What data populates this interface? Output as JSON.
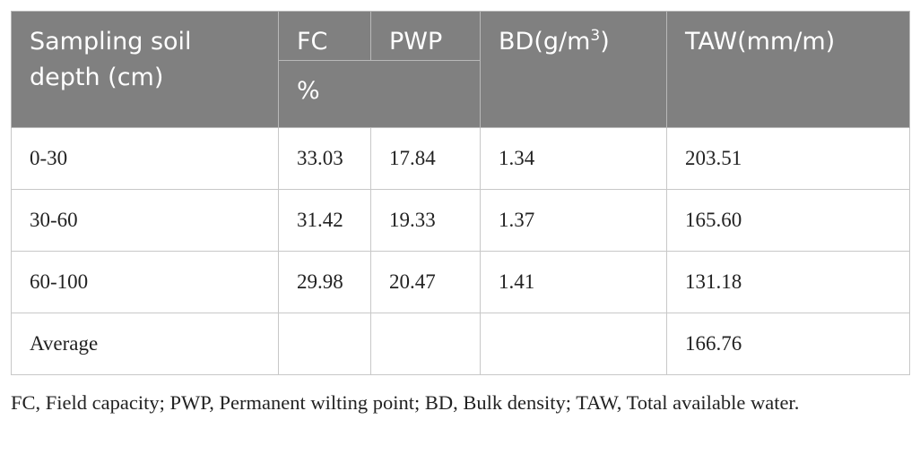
{
  "table": {
    "header": {
      "depth": "Sampling soil depth (cm)",
      "fc": "FC",
      "pwp": "PWP",
      "bd": {
        "text": "BD(g/m",
        "sup": "3",
        "close": ")"
      },
      "taw": "TAW(mm/m)",
      "unit": "%"
    },
    "rows": [
      [
        "0-30",
        "33.03",
        "17.84",
        "1.34",
        "203.51"
      ],
      [
        "30-60",
        "31.42",
        "19.33",
        "1.37",
        "165.60"
      ],
      [
        "60-100",
        "29.98",
        "20.47",
        "1.41",
        "131.18"
      ],
      [
        "Average",
        null,
        null,
        null,
        "166.76"
      ]
    ]
  },
  "footnote": "FC, Field capacity; PWP, Permanent wilting point; BD, Bulk density; TAW, Total available water."
}
